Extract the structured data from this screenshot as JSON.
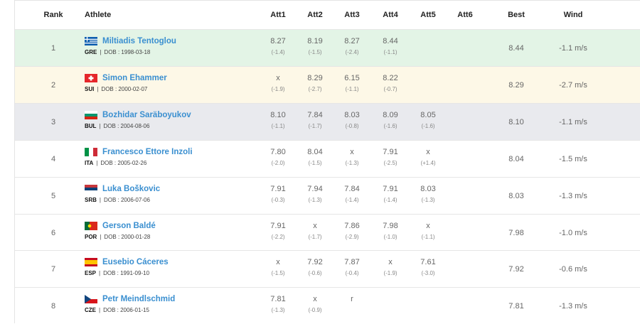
{
  "table": {
    "headers": [
      "Rank",
      "Athlete",
      "Att1",
      "Att2",
      "Att3",
      "Att4",
      "Att5",
      "Att6",
      "Best",
      "Wind"
    ],
    "dob_separator": "|",
    "rows": [
      {
        "rank": "1",
        "name": "Miltiadis Tentoglou",
        "country": "GRE",
        "dob": "DOB : 1998-03-18",
        "attempts": [
          {
            "mark": "8.27",
            "wind": "(-1.4)"
          },
          {
            "mark": "8.19",
            "wind": "(-1.5)"
          },
          {
            "mark": "8.27",
            "wind": "(-2.4)"
          },
          {
            "mark": "8.44",
            "wind": "(-1.1)"
          }
        ],
        "best": "8.44",
        "wind": "-1.1 m/s"
      },
      {
        "rank": "2",
        "name": "Simon Ehammer",
        "country": "SUI",
        "dob": "DOB : 2000-02-07",
        "attempts": [
          {
            "mark": "x",
            "wind": "(-1.9)"
          },
          {
            "mark": "8.29",
            "wind": "(-2.7)"
          },
          {
            "mark": "6.15",
            "wind": "(-1.1)"
          },
          {
            "mark": "8.22",
            "wind": "(-0.7)"
          }
        ],
        "best": "8.29",
        "wind": "-2.7 m/s"
      },
      {
        "rank": "3",
        "name": "Bozhidar Saräboyukov",
        "country": "BUL",
        "dob": "DOB : 2004-08-06",
        "attempts": [
          {
            "mark": "8.10",
            "wind": "(-1.1)"
          },
          {
            "mark": "7.84",
            "wind": "(-1.7)"
          },
          {
            "mark": "8.03",
            "wind": "(-0.8)"
          },
          {
            "mark": "8.09",
            "wind": "(-1.6)"
          },
          {
            "mark": "8.05",
            "wind": "(-1.6)"
          }
        ],
        "best": "8.10",
        "wind": "-1.1 m/s"
      },
      {
        "rank": "4",
        "name": "Francesco Ettore Inzoli",
        "country": "ITA",
        "dob": "DOB : 2005-02-26",
        "attempts": [
          {
            "mark": "7.80",
            "wind": "(-2.0)"
          },
          {
            "mark": "8.04",
            "wind": "(-1.5)"
          },
          {
            "mark": "x",
            "wind": "(-1.3)"
          },
          {
            "mark": "7.91",
            "wind": "(-2.5)"
          },
          {
            "mark": "x",
            "wind": "(+1.4)"
          }
        ],
        "best": "8.04",
        "wind": "-1.5 m/s"
      },
      {
        "rank": "5",
        "name": "Luka Boškovic",
        "country": "SRB",
        "dob": "DOB : 2006-07-06",
        "attempts": [
          {
            "mark": "7.91",
            "wind": "(-0.3)"
          },
          {
            "mark": "7.94",
            "wind": "(-1.3)"
          },
          {
            "mark": "7.84",
            "wind": "(-1.4)"
          },
          {
            "mark": "7.91",
            "wind": "(-1.4)"
          },
          {
            "mark": "8.03",
            "wind": "(-1.3)"
          }
        ],
        "best": "8.03",
        "wind": "-1.3 m/s"
      },
      {
        "rank": "6",
        "name": "Gerson Baldé",
        "country": "POR",
        "dob": "DOB : 2000-01-28",
        "attempts": [
          {
            "mark": "7.91",
            "wind": "(-2.2)"
          },
          {
            "mark": "x",
            "wind": "(-1.7)"
          },
          {
            "mark": "7.86",
            "wind": "(-2.9)"
          },
          {
            "mark": "7.98",
            "wind": "(-1.0)"
          },
          {
            "mark": "x",
            "wind": "(-1.1)"
          }
        ],
        "best": "7.98",
        "wind": "-1.0 m/s"
      },
      {
        "rank": "7",
        "name": "Eusebio Cáceres",
        "country": "ESP",
        "dob": "DOB : 1991-09-10",
        "attempts": [
          {
            "mark": "x",
            "wind": "(-1.5)"
          },
          {
            "mark": "7.92",
            "wind": "(-0.6)"
          },
          {
            "mark": "7.87",
            "wind": "(-0.4)"
          },
          {
            "mark": "x",
            "wind": "(-1.9)"
          },
          {
            "mark": "7.61",
            "wind": "(-3.0)"
          }
        ],
        "best": "7.92",
        "wind": "-0.6 m/s"
      },
      {
        "rank": "8",
        "name": "Petr Meindlschmid",
        "country": "CZE",
        "dob": "DOB : 2006-01-15",
        "attempts": [
          {
            "mark": "7.81",
            "wind": "(-1.3)"
          },
          {
            "mark": "x",
            "wind": "(-0.9)"
          },
          {
            "mark": "r"
          }
        ],
        "best": "7.81",
        "wind": "-1.3 m/s"
      }
    ]
  }
}
